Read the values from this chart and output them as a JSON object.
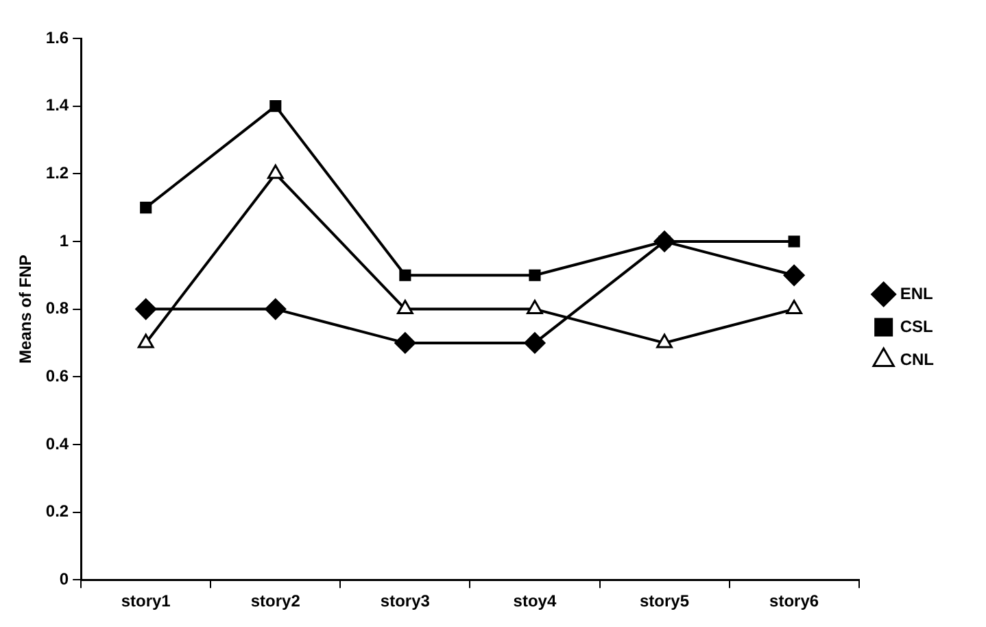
{
  "chart_data": {
    "type": "line",
    "ylabel": "Means of FNP",
    "categories": [
      "story1",
      "story2",
      "story3",
      "stoy4",
      "story5",
      "story6"
    ],
    "series": [
      {
        "name": "ENL",
        "color": "#000000",
        "marker": "diamond",
        "values": [
          0.8,
          0.8,
          0.7,
          0.7,
          1.0,
          0.9
        ]
      },
      {
        "name": "CSL",
        "color": "#000000",
        "marker": "square",
        "values": [
          1.1,
          1.4,
          0.9,
          0.9,
          1.0,
          1.0
        ]
      },
      {
        "name": "CNL",
        "color": "#000000",
        "marker": "triangle",
        "values": [
          0.7,
          1.2,
          0.8,
          0.8,
          0.7,
          0.8
        ]
      }
    ],
    "ylim": [
      0,
      1.6
    ],
    "yticks": [
      0,
      0.2,
      0.4,
      0.6,
      0.8,
      1,
      1.2,
      1.4,
      1.6
    ],
    "grid": false,
    "legend": "right",
    "line_style": "solid"
  }
}
